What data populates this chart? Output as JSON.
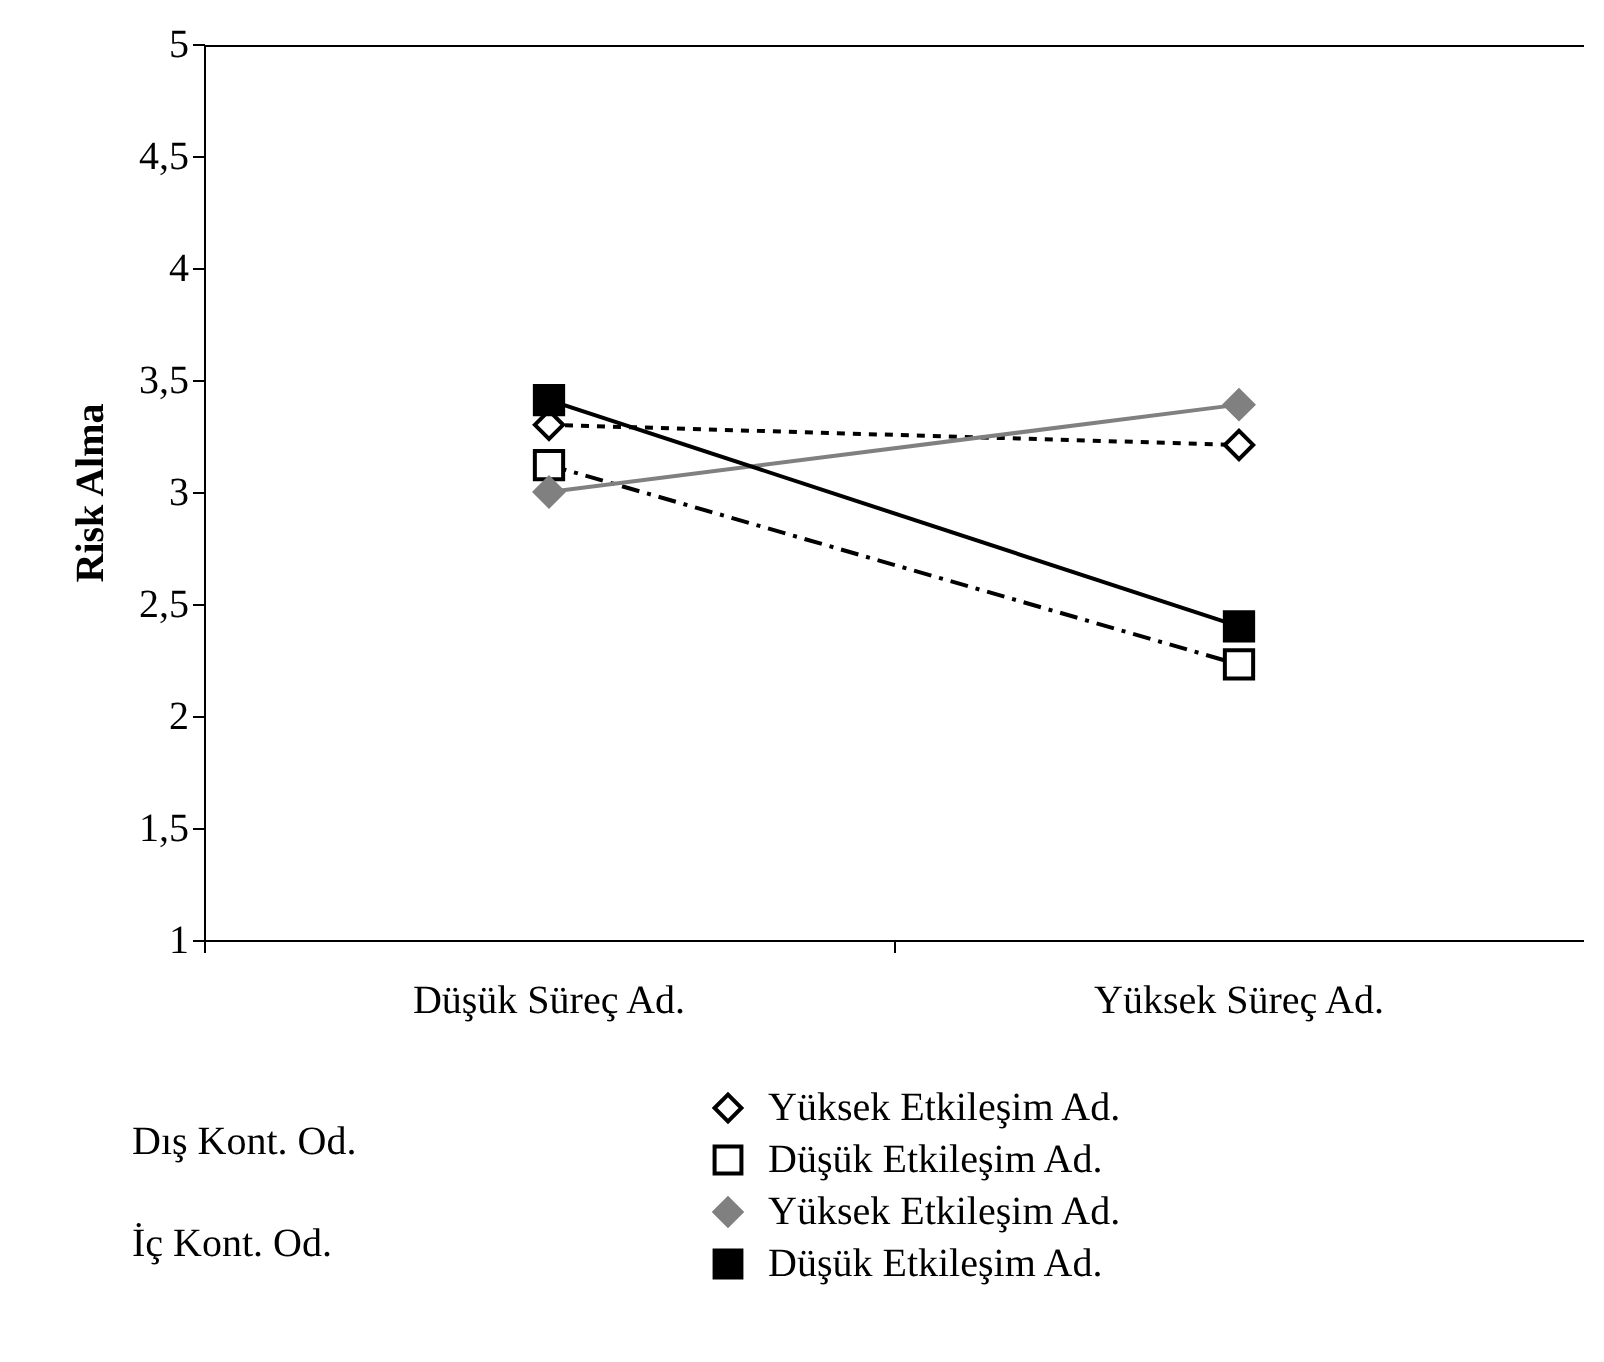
{
  "chart_data": {
    "type": "line",
    "ylabel": "Risk Alma",
    "categories": [
      "Düşük Süreç Ad.",
      "Yüksek Süreç Ad."
    ],
    "ylim": [
      1,
      5
    ],
    "yticks": [
      1,
      {
        "value": 1.5,
        "label": "1,5"
      },
      2,
      {
        "value": 2.5,
        "label": "2,5"
      },
      3,
      {
        "value": 3.5,
        "label": "3,5"
      },
      4,
      {
        "value": 4.5,
        "label": "4,5"
      },
      5
    ],
    "grid": false,
    "legend": "bottom",
    "annotations": [
      "Dış Kont. Od.",
      "İç Kont. Od."
    ],
    "series": [
      {
        "name": "Yüksek Etkileşim Ad.",
        "color": "#000000",
        "marker": "diamond",
        "line_style": "dotted",
        "values": [
          3.3,
          3.21
        ]
      },
      {
        "name": "Düşük Etkileşim Ad.",
        "color": "#000000",
        "marker": "square",
        "line_style": "dashed",
        "values": [
          3.12,
          2.23
        ]
      },
      {
        "name": "Yüksek Etkileşim Ad.",
        "color": "#808080",
        "marker": "diamond",
        "line_style": "solid",
        "values": [
          3.0,
          3.39
        ]
      },
      {
        "name": "Düşük Etkileşim Ad.",
        "color": "#000000",
        "marker": "square",
        "line_style": "solid",
        "values": [
          3.41,
          2.4
        ]
      }
    ]
  }
}
